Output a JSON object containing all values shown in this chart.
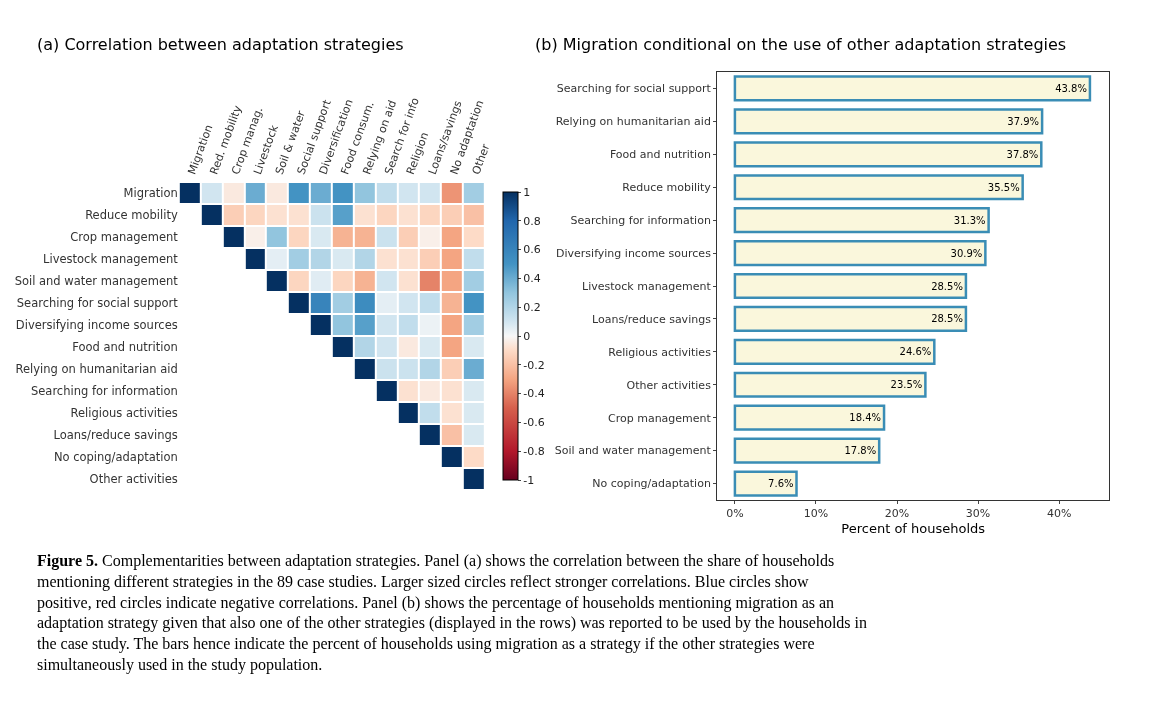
{
  "chart_data": [
    {
      "type": "heatmap",
      "title": "(a) Correlation between adaptation strategies",
      "categories": [
        "Migration",
        "Red. mobility",
        "Crop manag.",
        "Livestock",
        "Soil & water",
        "Social support",
        "Diversification",
        "Food consum.",
        "Relying on aid",
        "Search for info",
        "Religion",
        "Loans/savings",
        "No adaptation",
        "Other"
      ],
      "y_categories": [
        "Migration",
        "Reduce mobility",
        "Crop management",
        "Livestock management",
        "Soil and water management",
        "Searching for social support",
        "Diversifying income sources",
        "Food and nutrition",
        "Relying on humanitarian aid",
        "Searching for information",
        "Religious activities",
        "Loans/reduce savings",
        "No coping/adaptation",
        "Other activities"
      ],
      "cells": [
        [
          1,
          0.1,
          -0.05,
          0.4,
          -0.05,
          0.5,
          0.4,
          0.5,
          0.3,
          0.15,
          0.1,
          0.1,
          -0.35,
          0.25
        ],
        [
          null,
          1,
          -0.15,
          -0.12,
          -0.08,
          -0.08,
          0.12,
          0.45,
          -0.08,
          -0.12,
          -0.08,
          -0.12,
          -0.15,
          -0.2
        ],
        [
          null,
          null,
          1,
          -0.03,
          0.3,
          -0.12,
          0.08,
          -0.25,
          -0.25,
          0.12,
          -0.15,
          -0.03,
          -0.3,
          -0.1
        ],
        [
          null,
          null,
          null,
          1,
          0.05,
          0.25,
          0.2,
          0.08,
          0.2,
          -0.08,
          -0.08,
          -0.15,
          -0.3,
          0.15
        ],
        [
          null,
          null,
          null,
          null,
          1,
          -0.12,
          0.06,
          -0.12,
          -0.25,
          0.1,
          -0.08,
          -0.4,
          -0.3,
          0.25
        ],
        [
          null,
          null,
          null,
          null,
          null,
          1,
          0.6,
          0.25,
          0.55,
          0.05,
          0.1,
          0.15,
          -0.25,
          0.5
        ],
        [
          null,
          null,
          null,
          null,
          null,
          null,
          1,
          0.3,
          0.45,
          0.1,
          0.15,
          0.03,
          -0.3,
          0.25
        ],
        [
          null,
          null,
          null,
          null,
          null,
          null,
          null,
          1,
          0.2,
          0.1,
          -0.05,
          0.08,
          -0.3,
          0.08
        ],
        [
          null,
          null,
          null,
          null,
          null,
          null,
          null,
          null,
          1,
          0.12,
          0.12,
          0.2,
          -0.15,
          0.4
        ],
        [
          null,
          null,
          null,
          null,
          null,
          null,
          null,
          null,
          null,
          1,
          -0.08,
          -0.05,
          -0.08,
          0.08
        ],
        [
          null,
          null,
          null,
          null,
          null,
          null,
          null,
          null,
          null,
          null,
          1,
          0.15,
          -0.08,
          0.08
        ],
        [
          null,
          null,
          null,
          null,
          null,
          null,
          null,
          null,
          null,
          null,
          null,
          1,
          -0.2,
          0.08
        ],
        [
          null,
          null,
          null,
          null,
          null,
          null,
          null,
          null,
          null,
          null,
          null,
          null,
          1,
          -0.1
        ],
        [
          null,
          null,
          null,
          null,
          null,
          null,
          null,
          null,
          null,
          null,
          null,
          null,
          null,
          1
        ]
      ],
      "clim": [
        -1,
        1
      ],
      "cticks": [
        -1,
        -0.8,
        -0.6,
        -0.4,
        -0.2,
        0,
        0.2,
        0.4,
        0.6,
        0.8,
        1
      ],
      "annotations": [
        "Figure 5. Complementarities between adaptation strategies. Panel (a) shows the correlation between the share of households mentioning different strategies in the 89 case studies. Larger sized circles reflect stronger correlations. Blue circles show positive, red circles indicate negative correlations. Panel (b) shows the percentage of households mentioning migration as an adaptation strategy given that also one of the other strategies (displayed in the rows) was reported to be used by the households in the case study. The bars hence indicate the percent of households using migration as a strategy if the other strategies were simultaneously used in the study population."
      ]
    },
    {
      "type": "bar",
      "orientation": "horizontal",
      "title": "(b) Migration conditional on the use of other adaptation strategies",
      "categories": [
        "Searching for social support",
        "Relying on humanitarian aid",
        "Food and nutrition",
        "Reduce mobility",
        "Searching for information",
        "Diversifying income sources",
        "Livestock management",
        "Loans/reduce savings",
        "Religious activities",
        "Other activities",
        "Crop management",
        "Soil and water management",
        "No coping/adaptation"
      ],
      "values": [
        43.8,
        37.9,
        37.8,
        35.5,
        31.3,
        30.9,
        28.5,
        28.5,
        24.6,
        23.5,
        18.4,
        17.8,
        7.6
      ],
      "value_labels": [
        "43.8%",
        "37.9%",
        "37.8%",
        "35.5%",
        "31.3%",
        "30.9%",
        "28.5%",
        "28.5%",
        "24.6%",
        "23.5%",
        "18.4%",
        "17.8%",
        "7.6%"
      ],
      "color": "#faf7dc",
      "xlabel": "Percent of households",
      "xlim": [
        -2.2,
        46.2
      ],
      "xticks": [
        {
          "value": 0,
          "label": "0%"
        },
        {
          "value": 10,
          "label": "10%"
        },
        {
          "value": 20,
          "label": "20%"
        },
        {
          "value": 30,
          "label": "30%"
        },
        {
          "value": 40,
          "label": "40%"
        }
      ]
    }
  ]
}
